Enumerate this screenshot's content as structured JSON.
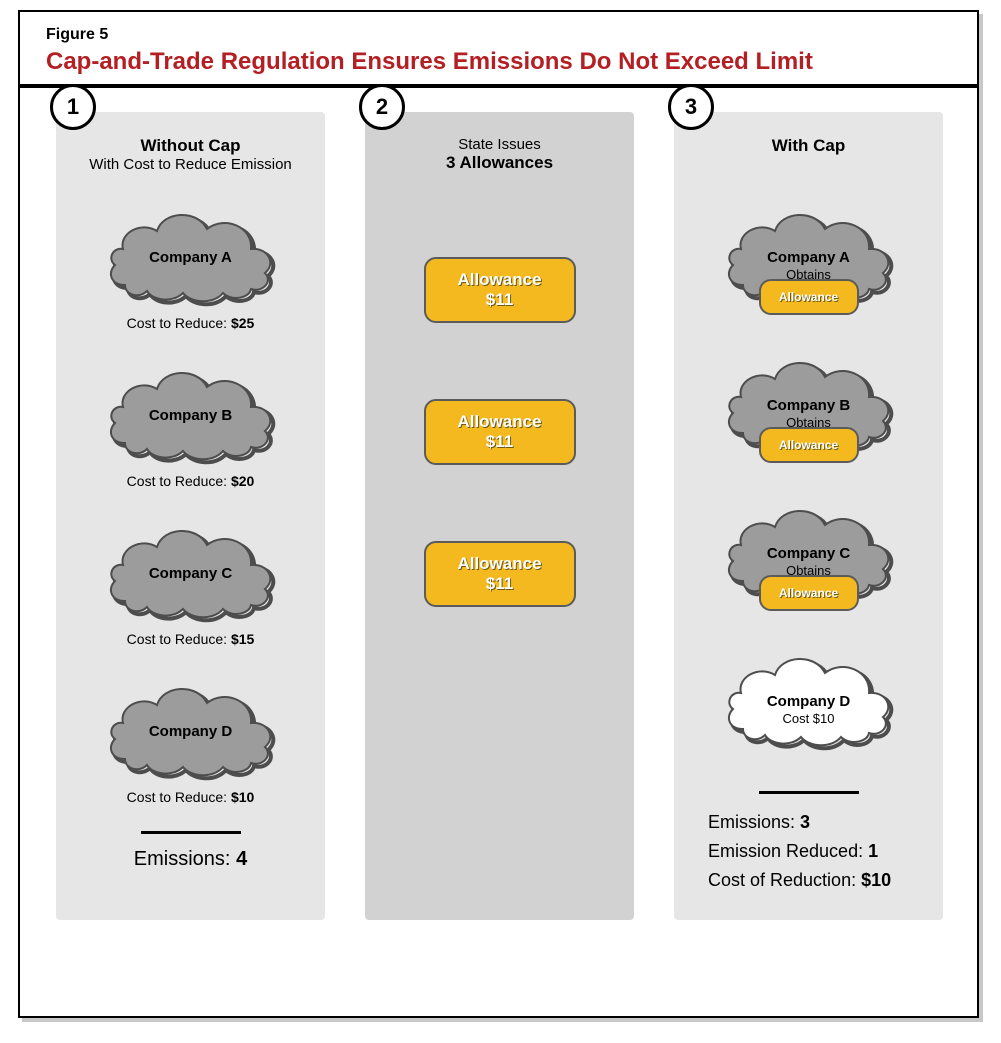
{
  "figure_number": "Figure 5",
  "figure_title": "Cap-and-Trade Regulation Ensures Emissions Do Not Exceed Limit",
  "title_color": "#b41f24",
  "border_color": "#000000",
  "shadow_color": "#c8c8c8",
  "font_family": "Helvetica, Arial, sans-serif",
  "title_fontsize_pt": 18,
  "panels": {
    "panel1": {
      "step": "1",
      "bg_color": "#e6e6e6",
      "heading_bold": "Without Cap",
      "heading_sub": "With Cost to Reduce Emission",
      "cloud_fill": "#9c9c9c",
      "cloud_stroke": "#4d4d4d",
      "companies": [
        {
          "name": "Company A",
          "cost_label": "Cost to Reduce:",
          "cost_value": "$25"
        },
        {
          "name": "Company B",
          "cost_label": "Cost to Reduce:",
          "cost_value": "$20"
        },
        {
          "name": "Company C",
          "cost_label": "Cost to Reduce:",
          "cost_value": "$15"
        },
        {
          "name": "Company D",
          "cost_label": "Cost to Reduce:",
          "cost_value": "$10"
        }
      ],
      "totals_label": "Emissions:",
      "totals_value": "4"
    },
    "panel2": {
      "step": "2",
      "bg_color": "#d2d2d2",
      "heading_sub": "State Issues",
      "heading_bold": "3 Allowances",
      "chip_fill": "#f3b91f",
      "chip_border": "#5b5b5b",
      "chip_text_color": "#ffffff",
      "chips": [
        {
          "line1": "Allowance",
          "line2": "$11"
        },
        {
          "line1": "Allowance",
          "line2": "$11"
        },
        {
          "line1": "Allowance",
          "line2": "$11"
        }
      ]
    },
    "panel3": {
      "step": "3",
      "bg_color": "#e6e6e6",
      "heading_bold": "With Cap",
      "cloud_fill_gray": "#9c9c9c",
      "cloud_fill_white": "#ffffff",
      "cloud_stroke": "#4d4d4d",
      "chip_fill": "#f3b91f",
      "chip_border": "#5b5b5b",
      "chip_text_color": "#ffffff",
      "chip_label": "Allowance",
      "companies": [
        {
          "name": "Company A",
          "sub": "Obtains",
          "fill": "gray",
          "has_chip": true
        },
        {
          "name": "Company B",
          "sub": "Obtains",
          "fill": "gray",
          "has_chip": true
        },
        {
          "name": "Company C",
          "sub": "Obtains",
          "fill": "gray",
          "has_chip": true
        },
        {
          "name": "Company D",
          "sub": "Cost $10",
          "fill": "white",
          "has_chip": false
        }
      ],
      "totals": [
        {
          "label": "Emissions:",
          "value": "3"
        },
        {
          "label": "Emission Reduced:",
          "value": "1"
        },
        {
          "label": "Cost of Reduction:",
          "value": "$10"
        }
      ]
    }
  }
}
